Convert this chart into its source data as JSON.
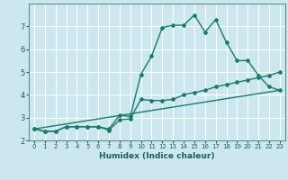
{
  "title": "",
  "xlabel": "Humidex (Indice chaleur)",
  "background_color": "#cce8ee",
  "grid_color": "#ffffff",
  "line_color": "#1a7a6e",
  "xlim": [
    -0.5,
    23.5
  ],
  "ylim": [
    2,
    8
  ],
  "yticks": [
    2,
    3,
    4,
    5,
    6,
    7
  ],
  "xticks": [
    0,
    1,
    2,
    3,
    4,
    5,
    6,
    7,
    8,
    9,
    10,
    11,
    12,
    13,
    14,
    15,
    16,
    17,
    18,
    19,
    20,
    21,
    22,
    23
  ],
  "series1_x": [
    0,
    1,
    2,
    3,
    4,
    5,
    6,
    7,
    8,
    9,
    10,
    11,
    12,
    13,
    14,
    15,
    16,
    17,
    18,
    19,
    20,
    21,
    22,
    23
  ],
  "series1_y": [
    2.5,
    2.4,
    2.4,
    2.6,
    2.6,
    2.6,
    2.6,
    2.5,
    3.1,
    3.05,
    4.9,
    5.7,
    6.95,
    7.05,
    7.05,
    7.5,
    6.75,
    7.3,
    6.3,
    5.5,
    5.5,
    4.85,
    4.35,
    4.2
  ],
  "series2_x": [
    0,
    1,
    2,
    3,
    4,
    5,
    6,
    7,
    8,
    9,
    10,
    11,
    12,
    13,
    14,
    15,
    16,
    17,
    18,
    19,
    20,
    21,
    22,
    23
  ],
  "series2_y": [
    2.5,
    2.4,
    2.4,
    2.6,
    2.6,
    2.6,
    2.6,
    2.45,
    2.9,
    2.95,
    3.8,
    3.75,
    3.75,
    3.8,
    4.0,
    4.1,
    4.2,
    4.35,
    4.45,
    4.55,
    4.65,
    4.75,
    4.85,
    5.0
  ],
  "series3_x": [
    0,
    23
  ],
  "series3_y": [
    2.5,
    4.2
  ],
  "marker_style": "D",
  "marker_size": 2.0,
  "line_width": 1.0
}
